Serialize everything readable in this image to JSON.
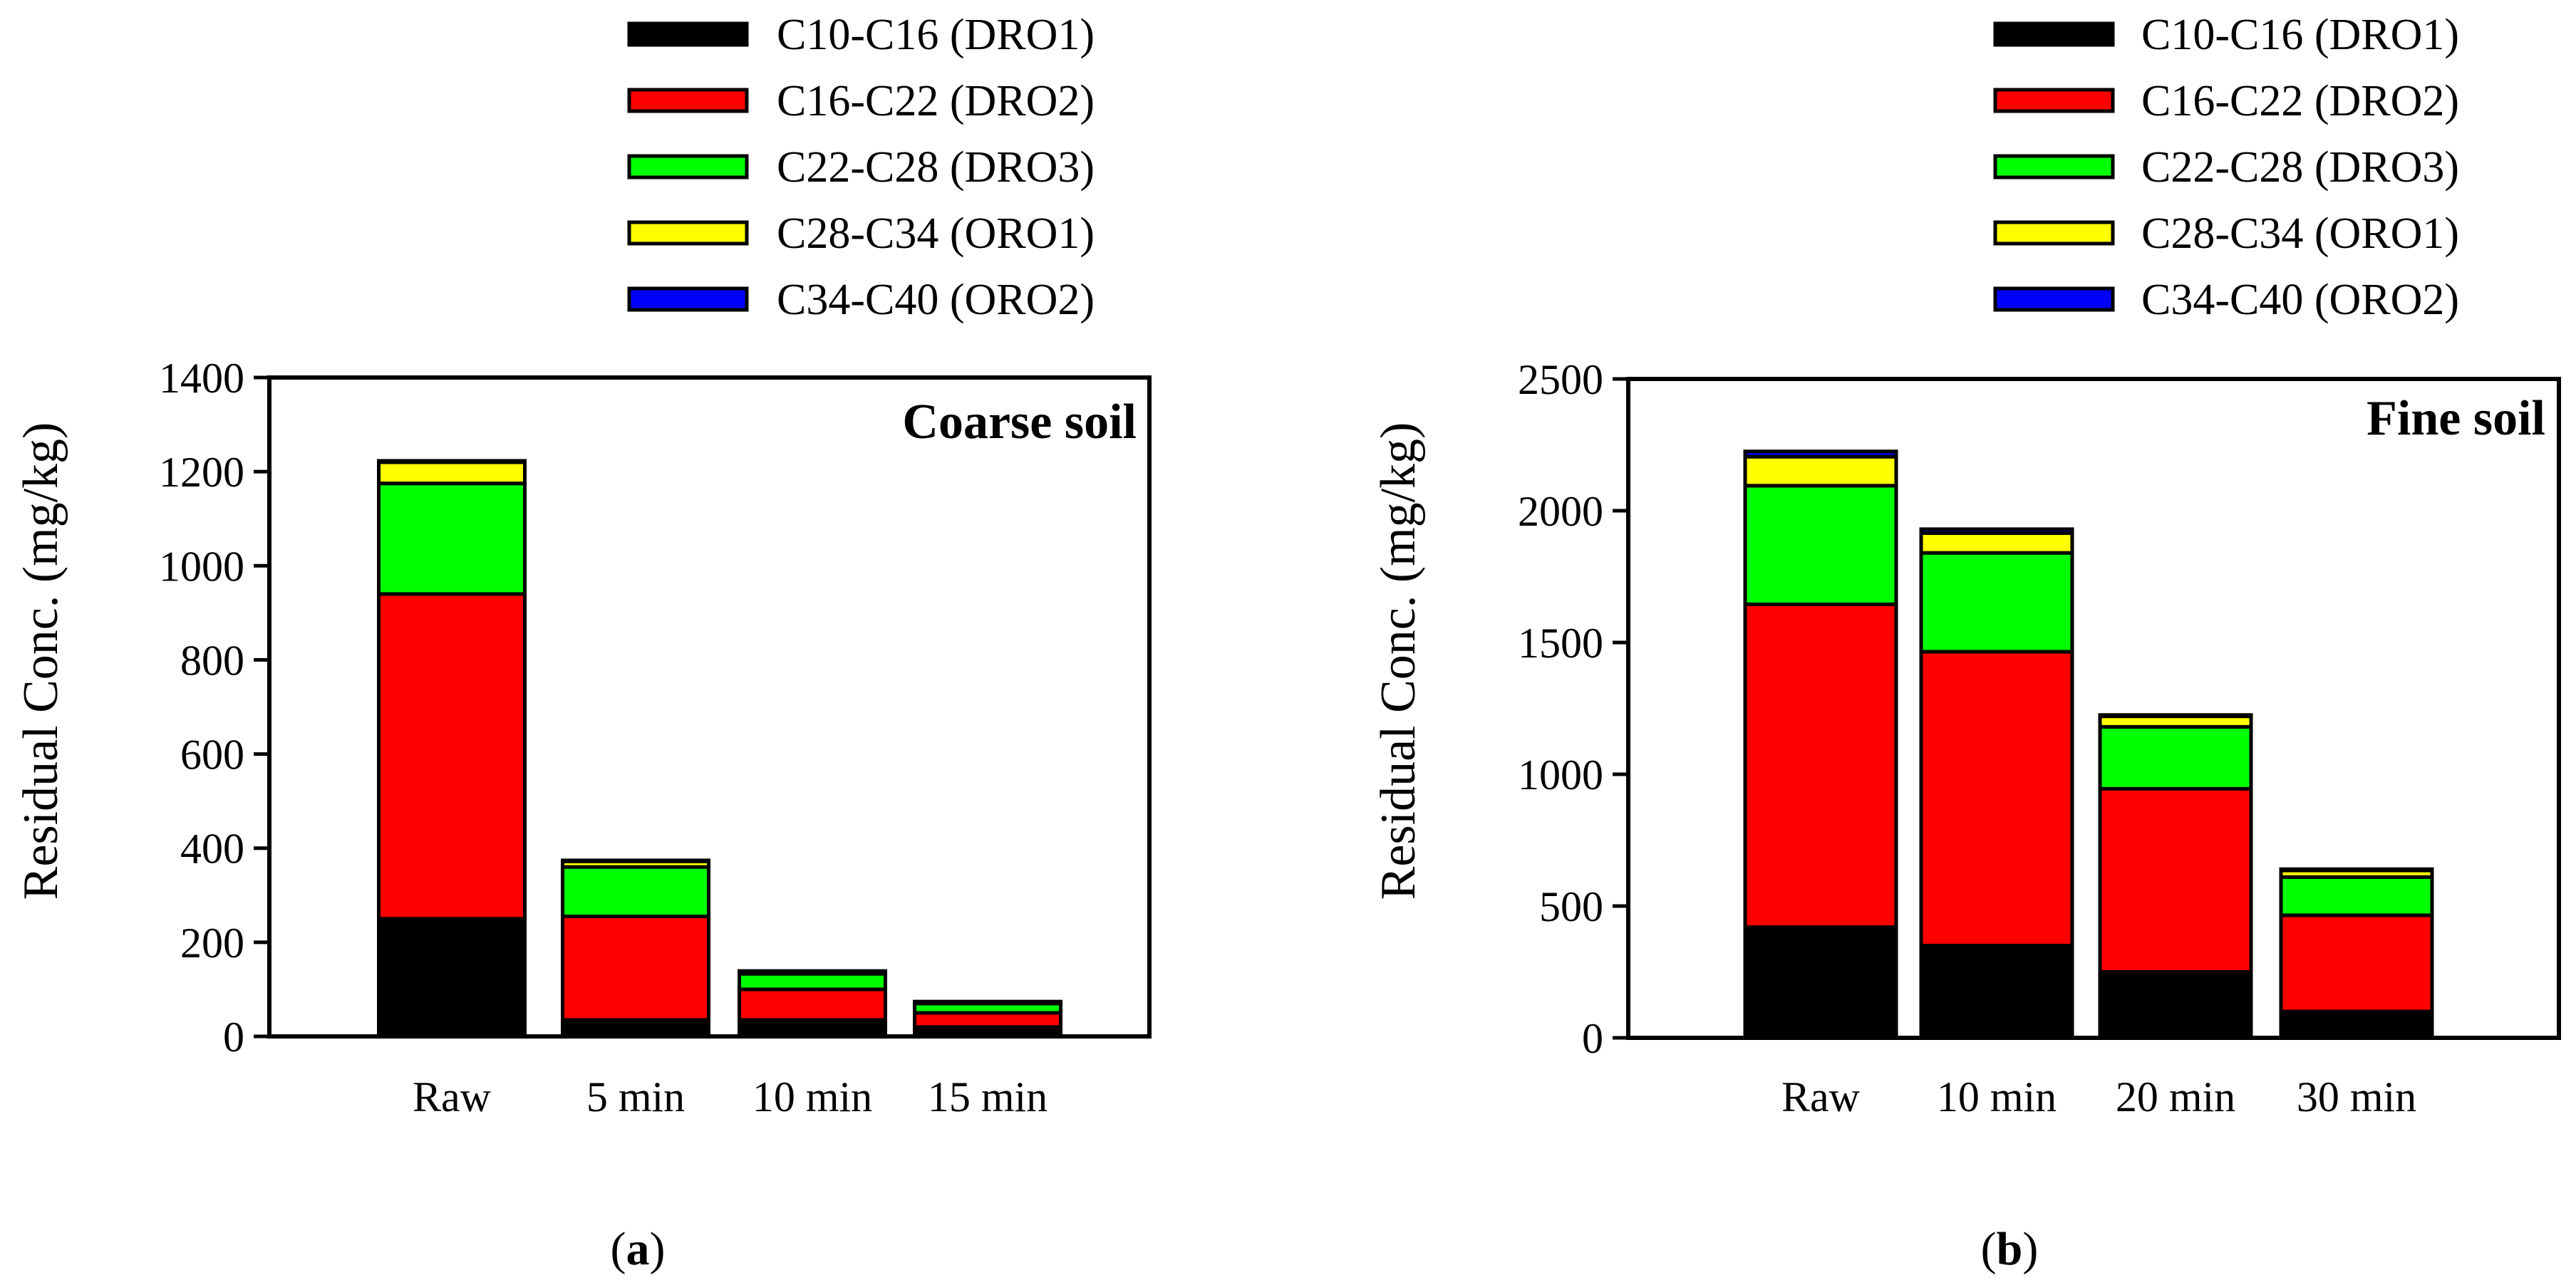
{
  "colors": {
    "DRO1": "#000000",
    "DRO2": "#ff0000",
    "DRO3": "#00ff00",
    "ORO1": "#ffff00",
    "ORO2": "#0000ff"
  },
  "chart_data": [
    {
      "type": "bar",
      "stacked": true,
      "panel": "a",
      "caption_letter": "a",
      "annotation": "Coarse soil",
      "title": "",
      "xlabel": "",
      "ylabel": "Residual Conc. (mg/kg)",
      "ylim": [
        0,
        1400
      ],
      "yticks": [
        0,
        200,
        400,
        600,
        800,
        1000,
        1200,
        1400
      ],
      "categories": [
        "Raw",
        "5 min",
        "10 min",
        "15 min"
      ],
      "series": [
        {
          "key": "DRO1",
          "name": "C10-C16 (DRO1)",
          "values": [
            250,
            35,
            35,
            20
          ]
        },
        {
          "key": "DRO2",
          "name": "C16-C22 (DRO2)",
          "values": [
            690,
            220,
            65,
            30
          ]
        },
        {
          "key": "DRO3",
          "name": "C22-C28 (DRO3)",
          "values": [
            235,
            105,
            33,
            20
          ]
        },
        {
          "key": "ORO1",
          "name": "C28-C34 (ORO1)",
          "values": [
            45,
            12,
            5,
            3
          ]
        },
        {
          "key": "ORO2",
          "name": "C34-C40 (ORO2)",
          "values": [
            3,
            2,
            1,
            1
          ]
        }
      ],
      "legend_position": "top"
    },
    {
      "type": "bar",
      "stacked": true,
      "panel": "b",
      "caption_letter": "b",
      "annotation": "Fine soil",
      "title": "",
      "xlabel": "",
      "ylabel": "Residual Conc. (mg/kg)",
      "ylim": [
        0,
        2500
      ],
      "yticks": [
        0,
        500,
        1000,
        1500,
        2000,
        2500
      ],
      "categories": [
        "Raw",
        "10 min",
        "20 min",
        "30 min"
      ],
      "series": [
        {
          "key": "DRO1",
          "name": "C10-C16 (DRO1)",
          "values": [
            420,
            350,
            250,
            100
          ]
        },
        {
          "key": "DRO2",
          "name": "C16-C22 (DRO2)",
          "values": [
            1225,
            1115,
            695,
            365
          ]
        },
        {
          "key": "DRO3",
          "name": "C22-C28 (DRO3)",
          "values": [
            450,
            375,
            235,
            145
          ]
        },
        {
          "key": "ORO1",
          "name": "C28-C34 (ORO1)",
          "values": [
            110,
            75,
            40,
            25
          ]
        },
        {
          "key": "ORO2",
          "name": "C34-C40 (ORO2)",
          "values": [
            20,
            15,
            5,
            5
          ]
        }
      ],
      "legend_position": "top"
    }
  ]
}
